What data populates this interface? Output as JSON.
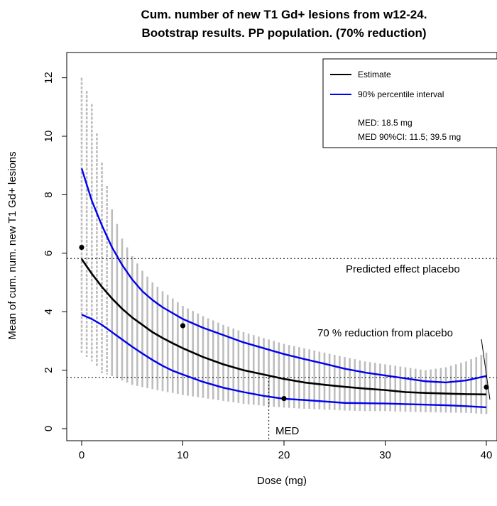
{
  "chart_data": {
    "type": "line",
    "title_line1": "Cum. number of new T1 Gd+ lesions from w12-24.",
    "title_line2": "Bootstrap results. PP population. (70% reduction)",
    "xlabel": "Dose (mg)",
    "ylabel": "Mean of cum. num. new T1 Gd+ lesions",
    "xlim": [
      -1,
      40.5
    ],
    "ylim": [
      -0.5,
      13
    ],
    "xticks": [
      0,
      10,
      20,
      30,
      40
    ],
    "yticks": [
      0,
      2,
      4,
      6,
      8,
      10,
      12
    ],
    "estimate": {
      "name": "Estimate",
      "color": "#000000",
      "x": [
        0,
        1,
        2,
        3,
        4,
        5,
        6,
        7,
        8,
        9,
        10,
        12,
        14,
        16,
        18,
        20,
        22,
        24,
        26,
        28,
        30,
        32,
        34,
        36,
        38,
        40
      ],
      "y": [
        5.8,
        5.3,
        4.85,
        4.45,
        4.1,
        3.8,
        3.55,
        3.3,
        3.1,
        2.92,
        2.75,
        2.45,
        2.2,
        2.0,
        1.85,
        1.7,
        1.58,
        1.5,
        1.43,
        1.37,
        1.32,
        1.25,
        1.22,
        1.2,
        1.18,
        1.17
      ]
    },
    "upper": {
      "name": "90% percentile interval",
      "color": "#0000ee",
      "x": [
        0,
        1,
        2,
        3,
        4,
        5,
        6,
        7,
        8,
        9,
        10,
        12,
        14,
        16,
        18,
        20,
        22,
        24,
        26,
        28,
        30,
        32,
        34,
        36,
        38,
        40
      ],
      "y": [
        8.9,
        7.8,
        6.95,
        6.2,
        5.6,
        5.1,
        4.7,
        4.4,
        4.15,
        3.95,
        3.75,
        3.45,
        3.2,
        2.95,
        2.75,
        2.55,
        2.38,
        2.22,
        2.05,
        1.92,
        1.82,
        1.72,
        1.62,
        1.58,
        1.65,
        1.8
      ]
    },
    "lower": {
      "color": "#0000ee",
      "x": [
        0,
        1,
        2,
        3,
        4,
        5,
        6,
        7,
        8,
        9,
        10,
        12,
        14,
        16,
        18,
        20,
        22,
        24,
        26,
        28,
        30,
        32,
        34,
        36,
        38,
        40
      ],
      "y": [
        3.9,
        3.75,
        3.55,
        3.3,
        3.05,
        2.8,
        2.57,
        2.35,
        2.15,
        1.98,
        1.85,
        1.6,
        1.4,
        1.25,
        1.12,
        1.02,
        0.98,
        0.93,
        0.88,
        0.87,
        0.86,
        0.84,
        0.82,
        0.8,
        0.77,
        0.73
      ]
    },
    "band_upper": [
      12.0,
      11.1,
      9.1,
      7.5,
      6.5,
      5.9,
      5.4,
      5.0,
      4.7,
      4.45,
      4.2,
      3.85,
      3.55,
      3.3,
      3.1,
      2.9,
      2.75,
      2.6,
      2.45,
      2.3,
      2.2,
      2.1,
      2.0,
      2.1,
      2.3,
      2.6
    ],
    "band_lower": [
      2.6,
      2.3,
      1.9,
      1.8,
      1.65,
      1.5,
      1.42,
      1.35,
      1.28,
      1.22,
      1.15,
      1.05,
      0.95,
      0.85,
      0.78,
      0.72,
      0.68,
      0.65,
      0.62,
      0.6,
      0.6,
      0.58,
      0.56,
      0.55,
      0.54,
      0.5
    ],
    "observed": {
      "x": [
        0,
        10,
        20,
        40
      ],
      "y": [
        6.2,
        3.52,
        1.03,
        1.42
      ]
    },
    "placebo_effect": 5.82,
    "reduction_level": 1.75,
    "med": 18.5,
    "annotations": {
      "placebo_label": "Predicted effect placebo",
      "reduction_label": "70 % reduction from placebo",
      "med_label": "MED"
    },
    "legend": {
      "placement": "top-right",
      "estimate_label": "Estimate",
      "interval_label": "90% percentile interval",
      "med_text": "MED: 18.5 mg",
      "med_ci_text": "MED 90%CI: 11.5; 39.5 mg"
    },
    "colors": {
      "band": "#bdbdbd",
      "estimate": "#000000",
      "interval": "#0000ee"
    }
  }
}
